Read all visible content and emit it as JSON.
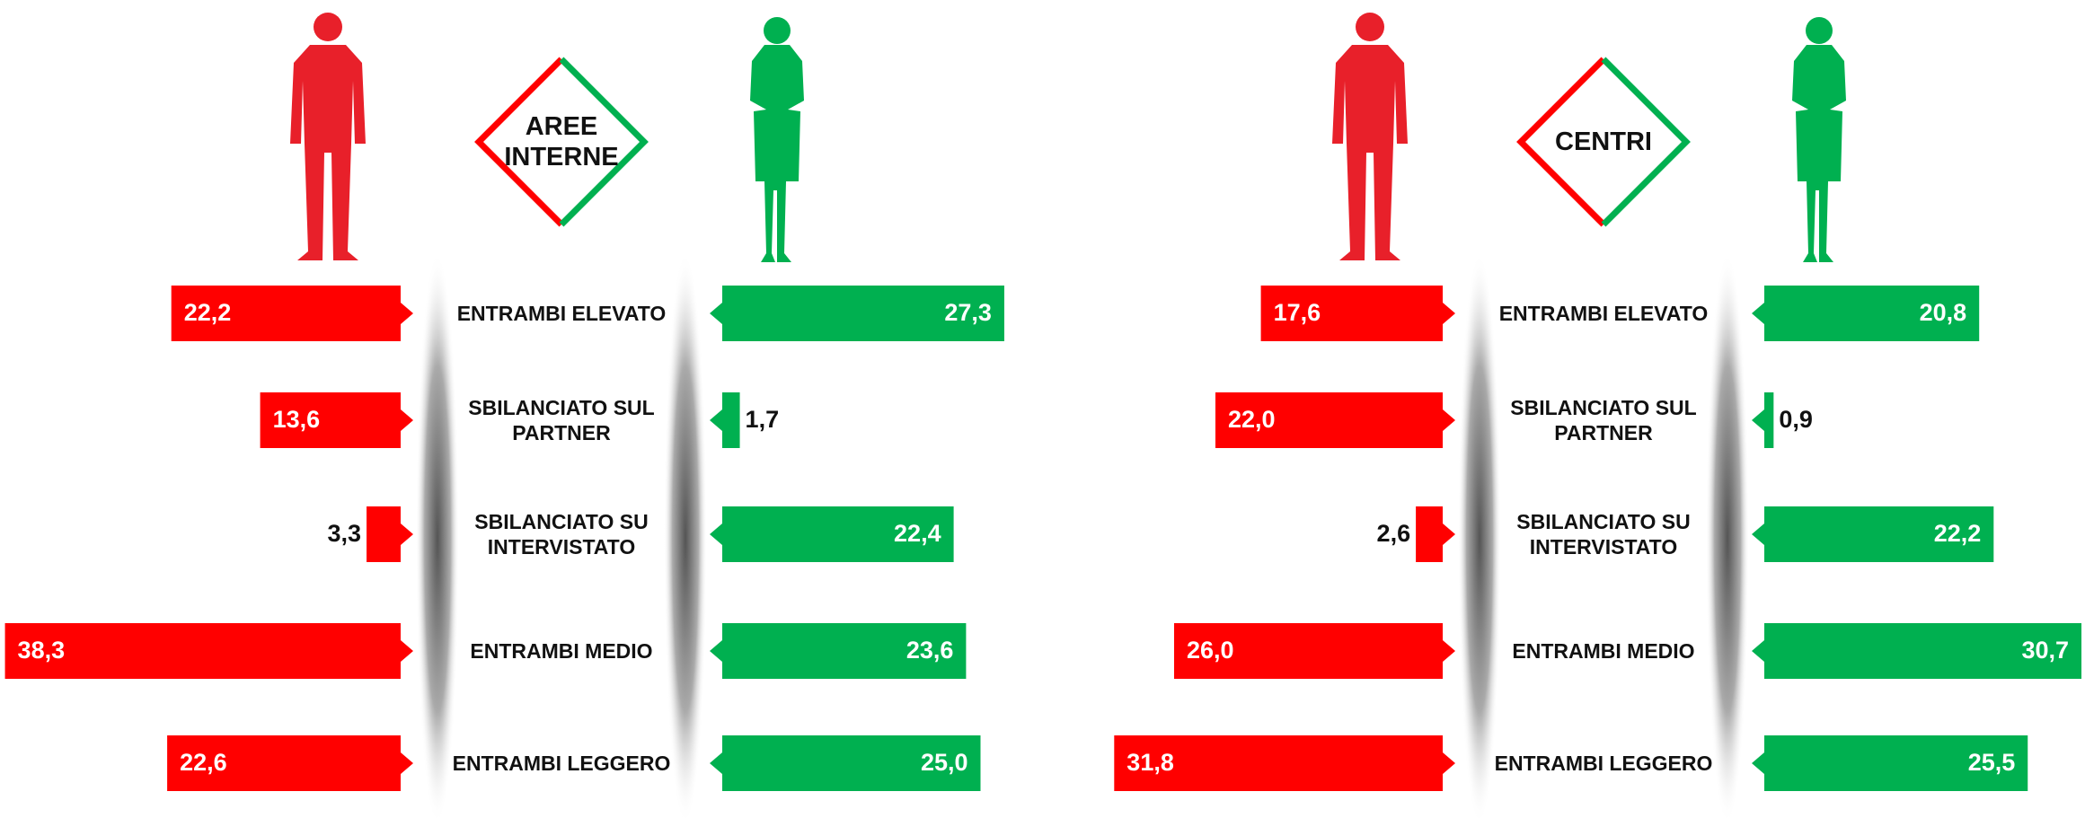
{
  "chart_data": [
    {
      "type": "bar",
      "title": "AREE\nINTERNE",
      "categories": [
        "ENTRAMBI ELEVATO",
        "SBILANCIATO SUL\nPARTNER",
        "SBILANCIATO SU\nINTERVISTATO",
        "ENTRAMBI MEDIO",
        "ENTRAMBI LEGGERO"
      ],
      "series": [
        {
          "color": "#ff0000",
          "values": [
            22.2,
            13.6,
            3.3,
            38.3,
            22.6
          ],
          "value_labels": [
            "22,2",
            "13,6",
            "3,3",
            "38,3",
            "22,6"
          ]
        },
        {
          "color": "#00b050",
          "values": [
            27.3,
            1.7,
            22.4,
            23.6,
            25.0
          ],
          "value_labels": [
            "27,3",
            "1,7",
            "22,4",
            "23,6",
            "25,0"
          ]
        }
      ]
    },
    {
      "type": "bar",
      "title": "CENTRI",
      "categories": [
        "ENTRAMBI ELEVATO",
        "SBILANCIATO SUL\nPARTNER",
        "SBILANCIATO SU\nINTERVISTATO",
        "ENTRAMBI MEDIO",
        "ENTRAMBI LEGGERO"
      ],
      "series": [
        {
          "color": "#ff0000",
          "values": [
            17.6,
            22.0,
            2.6,
            26.0,
            31.8
          ],
          "value_labels": [
            "17,6",
            "22,0",
            "2,6",
            "26,0",
            "31,8"
          ]
        },
        {
          "color": "#00b050",
          "values": [
            20.8,
            0.9,
            22.2,
            30.7,
            25.5
          ],
          "value_labels": [
            "20,8",
            "0,9",
            "22,2",
            "30,7",
            "25,5"
          ]
        }
      ]
    }
  ]
}
